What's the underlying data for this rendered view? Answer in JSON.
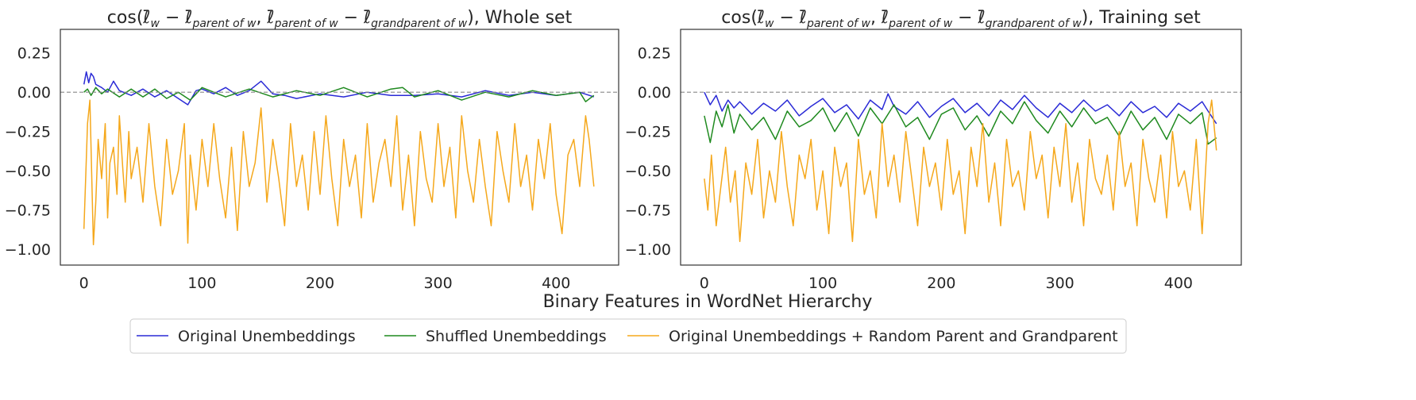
{
  "figure": {
    "xlabel": "Binary Features in WordNet Hierarchy",
    "legend_placement": "bottom-center"
  },
  "chart_data": [
    {
      "type": "line",
      "title": "cos(ℓ̄_w − ℓ̄_parent of w, ℓ̄_parent of w − ℓ̄_grandparent of w), Whole set",
      "title_parts": {
        "prefix": "cos(",
        "l": "ℓ̄",
        "minus": " − ",
        "comma": ", ",
        "close": ")",
        "w": "w",
        "parent": "parent of w",
        "grandparent": "grandparent of w",
        "suffix": "), Whole set"
      },
      "xlim": [
        -20,
        453
      ],
      "ylim": [
        -1.1,
        0.4
      ],
      "xticks": [
        0,
        100,
        200,
        300,
        400
      ],
      "xtick_labels": [
        "0",
        "100",
        "200",
        "300",
        "400"
      ],
      "yticks": [
        0.25,
        0.0,
        -0.25,
        -0.5,
        -0.75,
        -1.0
      ],
      "ytick_labels": [
        "0.25",
        "0.00",
        "−0.25",
        "−0.50",
        "−0.75",
        "−1.00"
      ],
      "reference_line": 0.0,
      "grid": false,
      "series": [
        {
          "name": "Original Unembeddings",
          "color": "#2a2ad6",
          "x": [
            0,
            2,
            4,
            6,
            8,
            10,
            15,
            20,
            25,
            30,
            40,
            50,
            60,
            70,
            80,
            88,
            95,
            100,
            110,
            120,
            130,
            140,
            150,
            160,
            170,
            180,
            200,
            220,
            240,
            260,
            280,
            300,
            320,
            340,
            360,
            380,
            400,
            420,
            432
          ],
          "y": [
            0.05,
            0.13,
            0.06,
            0.12,
            0.1,
            0.05,
            0.03,
            0.0,
            0.07,
            0.01,
            -0.02,
            0.02,
            -0.03,
            0.01,
            -0.04,
            -0.08,
            0.01,
            0.02,
            -0.01,
            0.03,
            -0.02,
            0.01,
            0.07,
            -0.01,
            -0.02,
            -0.04,
            -0.01,
            -0.03,
            0.0,
            -0.02,
            -0.02,
            -0.01,
            -0.03,
            0.01,
            -0.02,
            0.0,
            -0.02,
            0.0,
            -0.03
          ]
        },
        {
          "name": "Shuffled Unembeddings",
          "color": "#1f8a1f",
          "x": [
            0,
            3,
            6,
            10,
            15,
            20,
            30,
            40,
            50,
            60,
            70,
            80,
            90,
            100,
            120,
            140,
            160,
            180,
            200,
            220,
            240,
            260,
            270,
            280,
            300,
            320,
            340,
            360,
            380,
            400,
            420,
            425,
            432
          ],
          "y": [
            0.0,
            0.02,
            -0.02,
            0.03,
            -0.01,
            0.02,
            -0.03,
            0.02,
            -0.03,
            0.02,
            -0.04,
            0.0,
            -0.05,
            0.03,
            -0.03,
            0.02,
            -0.03,
            0.01,
            -0.02,
            0.03,
            -0.03,
            0.02,
            0.03,
            -0.03,
            0.01,
            -0.05,
            0.0,
            -0.03,
            0.01,
            -0.02,
            0.0,
            -0.06,
            -0.02
          ]
        },
        {
          "name": "Original Unembeddings + Random Parent and Grandparent",
          "color": "#f5a81c",
          "x": [
            0,
            3,
            5,
            8,
            10,
            12,
            15,
            18,
            20,
            22,
            25,
            28,
            30,
            33,
            35,
            38,
            40,
            45,
            50,
            55,
            60,
            65,
            70,
            75,
            80,
            85,
            88,
            90,
            95,
            100,
            105,
            110,
            115,
            120,
            125,
            130,
            135,
            140,
            145,
            150,
            155,
            160,
            165,
            170,
            175,
            180,
            185,
            190,
            195,
            200,
            205,
            210,
            215,
            220,
            225,
            230,
            235,
            240,
            245,
            250,
            255,
            260,
            265,
            270,
            275,
            280,
            285,
            290,
            295,
            300,
            305,
            310,
            315,
            320,
            325,
            330,
            335,
            340,
            345,
            350,
            355,
            360,
            365,
            370,
            375,
            380,
            385,
            390,
            395,
            400,
            405,
            410,
            415,
            420,
            425,
            428,
            432
          ],
          "y": [
            -0.87,
            -0.2,
            -0.05,
            -0.97,
            -0.7,
            -0.3,
            -0.55,
            -0.2,
            -0.8,
            -0.45,
            -0.35,
            -0.65,
            -0.15,
            -0.5,
            -0.7,
            -0.25,
            -0.55,
            -0.35,
            -0.7,
            -0.2,
            -0.6,
            -0.85,
            -0.3,
            -0.65,
            -0.5,
            -0.2,
            -0.96,
            -0.4,
            -0.75,
            -0.3,
            -0.6,
            -0.2,
            -0.55,
            -0.8,
            -0.35,
            -0.88,
            -0.25,
            -0.6,
            -0.45,
            -0.1,
            -0.7,
            -0.3,
            -0.55,
            -0.85,
            -0.2,
            -0.6,
            -0.4,
            -0.75,
            -0.25,
            -0.65,
            -0.15,
            -0.55,
            -0.85,
            -0.3,
            -0.6,
            -0.4,
            -0.8,
            -0.2,
            -0.7,
            -0.45,
            -0.3,
            -0.6,
            -0.15,
            -0.75,
            -0.4,
            -0.85,
            -0.25,
            -0.55,
            -0.7,
            -0.2,
            -0.6,
            -0.35,
            -0.8,
            -0.15,
            -0.5,
            -0.7,
            -0.3,
            -0.6,
            -0.85,
            -0.25,
            -0.5,
            -0.7,
            -0.2,
            -0.6,
            -0.4,
            -0.75,
            -0.3,
            -0.55,
            -0.2,
            -0.65,
            -0.9,
            -0.4,
            -0.3,
            -0.6,
            -0.15,
            -0.3,
            -0.6
          ]
        }
      ]
    },
    {
      "type": "line",
      "title": "cos(ℓ̄_w − ℓ̄_parent of w, ℓ̄_parent of w − ℓ̄_grandparent of w), Training set",
      "title_parts": {
        "prefix": "cos(",
        "l": "ℓ̄",
        "minus": " − ",
        "comma": ", ",
        "close": ")",
        "w": "w",
        "parent": "parent of w",
        "grandparent": "grandparent of w",
        "suffix": "), Training set"
      },
      "xlim": [
        -20,
        453
      ],
      "ylim": [
        -1.1,
        0.4
      ],
      "xticks": [
        0,
        100,
        200,
        300,
        400
      ],
      "xtick_labels": [
        "0",
        "100",
        "200",
        "300",
        "400"
      ],
      "yticks": [
        0.25,
        0.0,
        -0.25,
        -0.5,
        -0.75,
        -1.0
      ],
      "ytick_labels": [
        "0.25",
        "0.00",
        "−0.25",
        "−0.50",
        "−0.75",
        "−1.00"
      ],
      "reference_line": 0.0,
      "grid": false,
      "series": [
        {
          "name": "Original Unembeddings",
          "color": "#2a2ad6",
          "x": [
            0,
            5,
            10,
            15,
            20,
            25,
            30,
            40,
            50,
            60,
            70,
            80,
            90,
            100,
            110,
            120,
            130,
            140,
            150,
            155,
            160,
            170,
            180,
            190,
            200,
            210,
            220,
            230,
            240,
            250,
            260,
            270,
            280,
            290,
            300,
            310,
            320,
            330,
            340,
            350,
            360,
            370,
            380,
            390,
            400,
            410,
            420,
            425,
            432
          ],
          "y": [
            0.0,
            -0.08,
            -0.02,
            -0.12,
            -0.05,
            -0.1,
            -0.06,
            -0.14,
            -0.07,
            -0.12,
            -0.05,
            -0.15,
            -0.09,
            -0.04,
            -0.13,
            -0.08,
            -0.17,
            -0.05,
            -0.11,
            -0.01,
            -0.09,
            -0.14,
            -0.06,
            -0.16,
            -0.09,
            -0.04,
            -0.13,
            -0.07,
            -0.15,
            -0.05,
            -0.11,
            -0.02,
            -0.1,
            -0.16,
            -0.07,
            -0.13,
            -0.05,
            -0.12,
            -0.08,
            -0.15,
            -0.06,
            -0.13,
            -0.09,
            -0.16,
            -0.07,
            -0.12,
            -0.06,
            -0.12,
            -0.2
          ]
        },
        {
          "name": "Shuffled Unembeddings",
          "color": "#1f8a1f",
          "x": [
            0,
            5,
            10,
            15,
            20,
            25,
            30,
            40,
            50,
            60,
            70,
            80,
            90,
            100,
            110,
            120,
            130,
            140,
            150,
            160,
            170,
            180,
            190,
            200,
            210,
            220,
            230,
            240,
            250,
            260,
            270,
            280,
            290,
            300,
            310,
            320,
            330,
            340,
            350,
            360,
            370,
            380,
            390,
            400,
            410,
            420,
            425,
            432
          ],
          "y": [
            -0.15,
            -0.32,
            -0.12,
            -0.22,
            -0.08,
            -0.26,
            -0.14,
            -0.24,
            -0.16,
            -0.3,
            -0.12,
            -0.22,
            -0.18,
            -0.1,
            -0.25,
            -0.13,
            -0.28,
            -0.1,
            -0.2,
            -0.08,
            -0.22,
            -0.16,
            -0.3,
            -0.14,
            -0.1,
            -0.24,
            -0.15,
            -0.28,
            -0.12,
            -0.2,
            -0.06,
            -0.18,
            -0.26,
            -0.12,
            -0.22,
            -0.1,
            -0.2,
            -0.16,
            -0.28,
            -0.12,
            -0.24,
            -0.16,
            -0.3,
            -0.14,
            -0.2,
            -0.13,
            -0.33,
            -0.29
          ]
        },
        {
          "name": "Original Unembeddings + Random Parent and Grandparent",
          "color": "#f5a81c",
          "x": [
            0,
            3,
            6,
            10,
            14,
            18,
            22,
            26,
            30,
            35,
            40,
            45,
            50,
            55,
            60,
            65,
            70,
            75,
            80,
            85,
            90,
            95,
            100,
            105,
            110,
            115,
            120,
            125,
            130,
            135,
            140,
            145,
            150,
            155,
            160,
            165,
            170,
            175,
            180,
            185,
            190,
            195,
            200,
            205,
            210,
            215,
            220,
            225,
            230,
            235,
            240,
            245,
            250,
            255,
            260,
            265,
            270,
            275,
            280,
            285,
            290,
            295,
            300,
            305,
            310,
            315,
            320,
            325,
            330,
            335,
            340,
            345,
            350,
            355,
            360,
            365,
            370,
            375,
            380,
            385,
            390,
            395,
            400,
            405,
            410,
            415,
            420,
            425,
            428,
            432
          ],
          "y": [
            -0.55,
            -0.75,
            -0.4,
            -0.85,
            -0.6,
            -0.35,
            -0.7,
            -0.5,
            -0.95,
            -0.45,
            -0.65,
            -0.3,
            -0.8,
            -0.5,
            -0.7,
            -0.25,
            -0.6,
            -0.85,
            -0.4,
            -0.55,
            -0.3,
            -0.75,
            -0.5,
            -0.9,
            -0.35,
            -0.6,
            -0.45,
            -0.95,
            -0.3,
            -0.65,
            -0.5,
            -0.8,
            -0.2,
            -0.6,
            -0.4,
            -0.7,
            -0.25,
            -0.55,
            -0.85,
            -0.35,
            -0.6,
            -0.45,
            -0.75,
            -0.3,
            -0.65,
            -0.5,
            -0.9,
            -0.35,
            -0.6,
            -0.2,
            -0.7,
            -0.45,
            -0.85,
            -0.3,
            -0.6,
            -0.5,
            -0.75,
            -0.25,
            -0.55,
            -0.4,
            -0.8,
            -0.35,
            -0.6,
            -0.2,
            -0.7,
            -0.45,
            -0.85,
            -0.3,
            -0.55,
            -0.65,
            -0.4,
            -0.75,
            -0.25,
            -0.6,
            -0.45,
            -0.85,
            -0.3,
            -0.55,
            -0.7,
            -0.4,
            -0.8,
            -0.25,
            -0.6,
            -0.5,
            -0.75,
            -0.3,
            -0.9,
            -0.2,
            -0.05,
            -0.37
          ]
        }
      ]
    }
  ]
}
